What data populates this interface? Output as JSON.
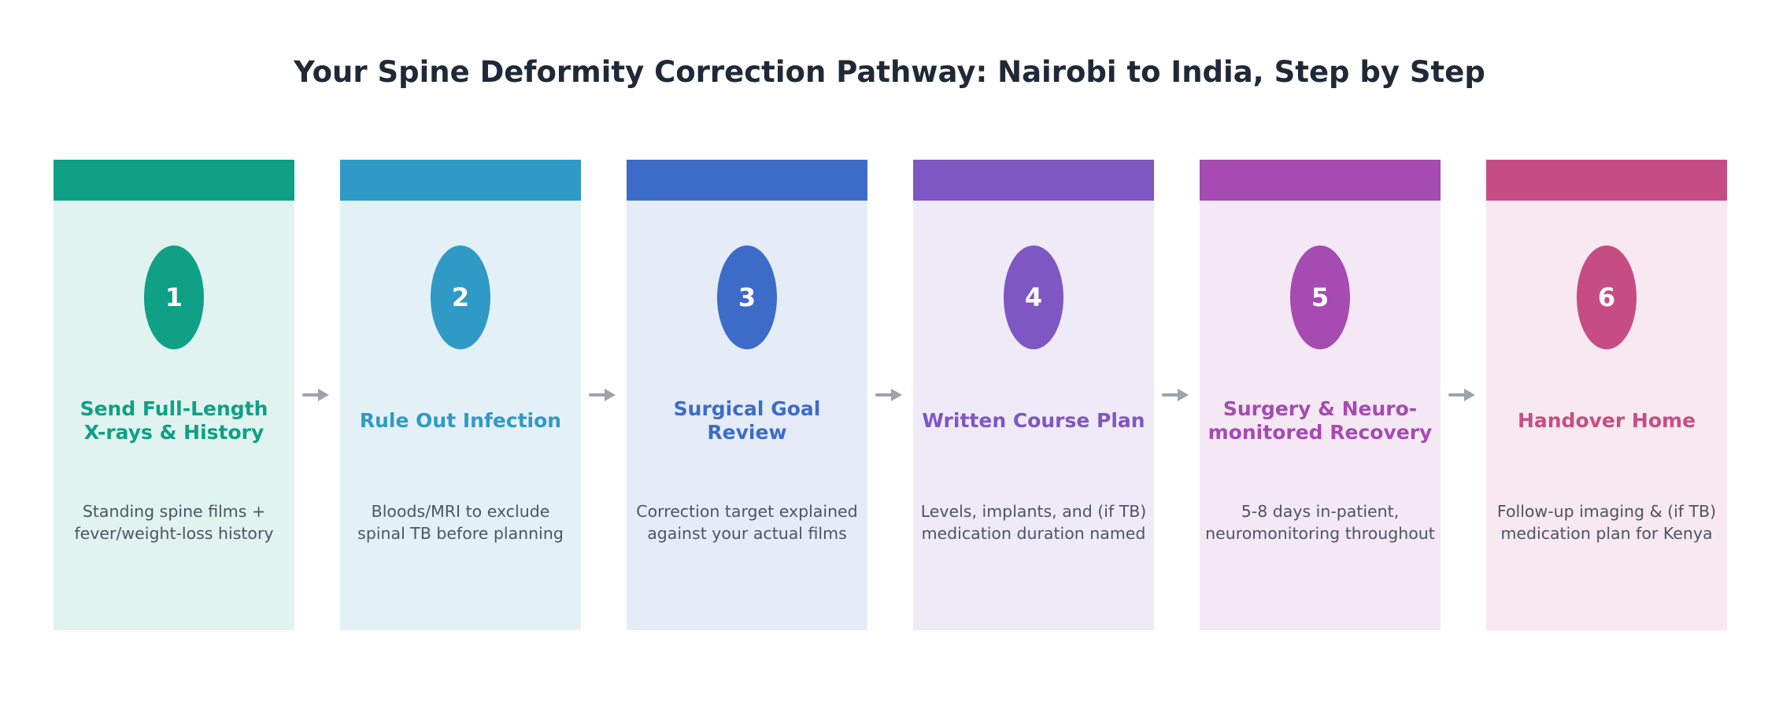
{
  "title": "Your Spine Deformity Correction Pathway: Nairobi to India, Step by Step",
  "steps": [
    {
      "number": "1",
      "title_lines": [
        "Send Full-Length",
        "X-rays & History"
      ],
      "desc_lines": [
        "Standing spine films +",
        "fever/weight-loss history"
      ],
      "color": "#0fa085",
      "bg": "#e0f3ef"
    },
    {
      "number": "2",
      "title_lines": [
        "Rule Out Infection"
      ],
      "desc_lines": [
        "Bloods/MRI to exclude",
        "spinal TB before planning"
      ],
      "color": "#2f9ac6",
      "bg": "#e3f1f7"
    },
    {
      "number": "3",
      "title_lines": [
        "Surgical Goal",
        "Review"
      ],
      "desc_lines": [
        "Correction target explained",
        "against your actual films"
      ],
      "color": "#3d6cc8",
      "bg": "#e6ecf7"
    },
    {
      "number": "4",
      "title_lines": [
        "Written Course Plan"
      ],
      "desc_lines": [
        "Levels, implants, and (if TB)",
        "medication duration named"
      ],
      "color": "#7e57c2",
      "bg": "#efeaf7"
    },
    {
      "number": "5",
      "title_lines": [
        "Surgery & Neuro-",
        "monitored Recovery"
      ],
      "desc_lines": [
        "5-8 days in-patient,",
        "neuromonitoring throughout"
      ],
      "color": "#a54bb1",
      "bg": "#f4e8f5"
    },
    {
      "number": "6",
      "title_lines": [
        "Handover Home"
      ],
      "desc_lines": [
        "Follow-up imaging & (if TB)",
        "medication plan for Kenya"
      ],
      "color": "#c64d84",
      "bg": "#f8e8ef"
    }
  ],
  "arrow_color": "#9ca3af"
}
